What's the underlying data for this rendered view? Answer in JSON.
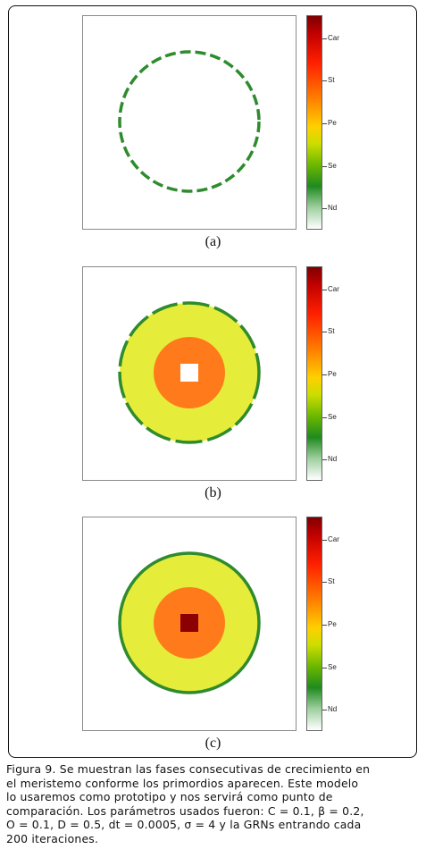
{
  "figure": {
    "panels": [
      {
        "id": "a",
        "label": "(a)",
        "ring_color": "#2e8b2e",
        "fill": []
      },
      {
        "id": "b",
        "label": "(b)",
        "ring_color": "#2e8b2e",
        "fill": [
          {
            "r": 0.78,
            "color": "#e6ec3a"
          },
          {
            "r": 0.4,
            "color": "#ff7a1a"
          },
          {
            "r": 0.1,
            "color": "#ffffff"
          }
        ]
      },
      {
        "id": "c",
        "label": "(c)",
        "ring_color": "#2e8b2e",
        "fill": [
          {
            "r": 0.78,
            "color": "#e6ec3a"
          },
          {
            "r": 0.4,
            "color": "#ff7a1a"
          },
          {
            "r": 0.1,
            "color": "#8b0000"
          }
        ]
      }
    ],
    "colorbar_labels": [
      "Car",
      "St",
      "Pe",
      "Se",
      "Nd"
    ]
  },
  "caption": {
    "lines": [
      "Figura 9. Se muestran las fases consecutivas de crecimiento en",
      "el meristemo conforme los primordios aparecen. Este modelo",
      "lo usaremos como prototipo y nos servirá como punto de",
      "comparación. Los parámetros usados fueron: C = 0.1, β = 0.2,",
      "O  = 0.1, D = 0.5, dt = 0.0005, σ =   4 y la GRNs entrando cada",
      "200    iteraciones."
    ]
  }
}
